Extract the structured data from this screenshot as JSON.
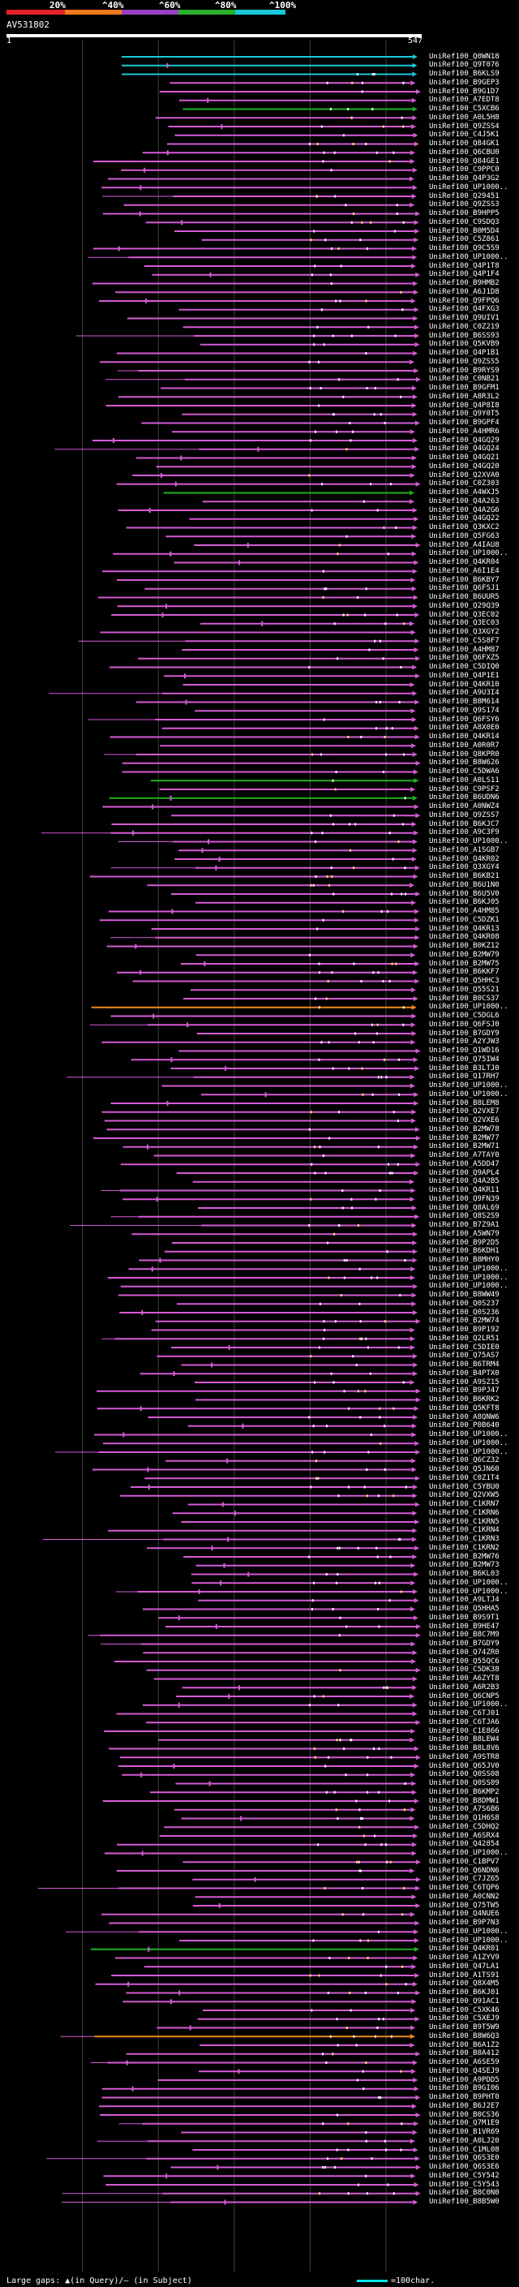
{
  "legend": {
    "labels": [
      "20%",
      "^40%",
      "^60%",
      "^80%",
      "^100%"
    ],
    "colors": [
      "#e8202a",
      "#ee7a1a",
      "#9b3fc0",
      "#2ab02a",
      "#19c9d9"
    ]
  },
  "query": {
    "id": "AV531802",
    "scale_start": "1",
    "scale_end": "547"
  },
  "colors": {
    "background": "#000000",
    "hit_magenta": "#d55bd5",
    "hit_cyan": "#19c9d9",
    "hit_green": "#22b022",
    "hit_orange": "#ee8a1a",
    "mismatch_white": "#ffffff",
    "mismatch_yellow": "#ffe066",
    "grid_line": "#404040"
  },
  "hit_labels": [
    "UniRef100_Q0WN18",
    "UniRef100_Q9T076",
    "UniRef100_B6KLS9",
    "UniRef100_B9GEP3",
    "UniRef100_B9G1D7",
    "UniRef100_A7EDT8",
    "UniRef100_C5XCB6",
    "UniRef100_A0L5H8",
    "UniRef100_Q9ZSS4",
    "UniRef100_C4J5K1",
    "UniRef100_Q84GK1",
    "UniRef100_Q6CBU0",
    "UniRef100_Q84GE1",
    "UniRef100_C9PPC0",
    "UniRef100_Q4P3G2",
    "UniRef100_UP1000..",
    "UniRef100_Q29451",
    "UniRef100_Q9ZSS3",
    "UniRef100_B9HPP5",
    "UniRef100_C9SDQ3",
    "UniRef100_B0M5D4",
    "UniRef100_C5Z861",
    "UniRef100_Q9C5S9",
    "UniRef100_UP1000..",
    "UniRef100_Q4P1T8",
    "UniRef100_Q4P1F4",
    "UniRef100_B9HMB2",
    "UniRef100_A6J1D8",
    "UniRef100_Q9FPQ6",
    "UniRef100_Q4FXG3",
    "UniRef100_Q9UIV1",
    "UniRef100_C0Z219",
    "UniRef100_B6SS93",
    "UniRef100_Q5KVB9",
    "UniRef100_Q4P1B1",
    "UniRef100_Q9ZSS5",
    "UniRef100_B9RYS9",
    "UniRef100_C0NB21",
    "UniRef100_B9GFM1",
    "UniRef100_A8R3L2",
    "UniRef100_Q4P8I8",
    "UniRef100_Q9Y0T5",
    "UniRef100_B9GPF4",
    "UniRef100_A4HMR6",
    "UniRef100_Q4GQ29",
    "UniRef100_Q4GQ24",
    "UniRef100_Q4GQ21",
    "UniRef100_Q4GQ20",
    "UniRef100_Q2XVA0",
    "UniRef100_C0Z303",
    "UniRef100_A4WXJ5",
    "UniRef100_Q4A263",
    "UniRef100_Q4A2G6",
    "UniRef100_Q4GQ22",
    "UniRef100_Q3KXC2",
    "UniRef100_Q5FG63",
    "UniRef100_A4IAU8",
    "UniRef100_UP1000..",
    "UniRef100_Q4KR04",
    "UniRef100_A6I1E4",
    "UniRef100_B6KBY7",
    "UniRef100_Q6FSJ1",
    "UniRef100_B6UUR5",
    "UniRef100_Q29Q39",
    "UniRef100_Q3EC02",
    "UniRef100_Q3EC03",
    "UniRef100_Q3XGY2",
    "UniRef100_C5S8F7",
    "UniRef100_A4HM87",
    "UniRef100_Q6FXZ5",
    "UniRef100_C5DIQ0",
    "UniRef100_Q4P1E1",
    "UniRef100_Q4KR10",
    "UniRef100_A9U3I4",
    "UniRef100_B8M614",
    "UniRef100_Q9S174",
    "UniRef100_Q6FSY6",
    "UniRef100_A8X0E0",
    "UniRef100_Q4KR14",
    "UniRef100_A0R0R7",
    "UniRef100_Q8KPR0",
    "UniRef100_B8W626",
    "UniRef100_C5DWA6",
    "UniRef100_A0LS11",
    "UniRef100_C9PSF2",
    "UniRef100_B6UDN6",
    "UniRef100_A0NWZ4",
    "UniRef100_Q9ZSS7",
    "UniRef100_B6KJC7",
    "UniRef100_A9C3F9",
    "UniRef100_UP1000..",
    "UniRef100_A1SGB7",
    "UniRef100_Q4KR02",
    "UniRef100_Q3XGY4",
    "UniRef100_B6KB21",
    "UniRef100_B6U1N0",
    "UniRef100_B6U5V0",
    "UniRef100_B6KJ05",
    "UniRef100_A4HM85",
    "UniRef100_C5DZK1",
    "UniRef100_Q4KR13",
    "UniRef100_Q4KR08",
    "UniRef100_B0KZ12",
    "UniRef100_B2MW79",
    "UniRef100_B2MW75",
    "UniRef100_B6KKF7",
    "UniRef100_Q5HHC3",
    "UniRef100_Q55S21",
    "UniRef100_B0CS37",
    "UniRef100_UP1000..",
    "UniRef100_C5DGL6",
    "UniRef100_Q6FSJ0",
    "UniRef100_B7GDY9",
    "UniRef100_A2YJW3",
    "UniRef100_Q1WD16",
    "UniRef100_Q75IW4",
    "UniRef100_B3LTJ0",
    "UniRef100_Q17RH7",
    "UniRef100_UP1000..",
    "UniRef100_UP1000..",
    "UniRef100_B8LEM8",
    "UniRef100_Q2VXE7",
    "UniRef100_Q2VXE6",
    "UniRef100_B2MW78",
    "UniRef100_B2MW77",
    "UniRef100_B2MW71",
    "UniRef100_A7TAY0",
    "UniRef100_A5DD47",
    "UniRef100_Q9APL4",
    "UniRef100_Q4A2B5",
    "UniRef100_Q4KR11",
    "UniRef100_Q9FN39",
    "UniRef100_Q8AL69",
    "UniRef100_Q8S2S9",
    "UniRef100_B7Z9A1",
    "UniRef100_A5WN79",
    "UniRef100_B9P2D5",
    "UniRef100_B6KDH1",
    "UniRef100_B8MHY0",
    "UniRef100_UP1000..",
    "UniRef100_UP1000..",
    "UniRef100_UP1000..",
    "UniRef100_B8WW49",
    "UniRef100_Q0S237",
    "UniRef100_Q0S236",
    "UniRef100_B2MW74",
    "UniRef100_B9P192",
    "UniRef100_Q2LR51",
    "UniRef100_C5DIE0",
    "UniRef100_Q75AS7",
    "UniRef100_B6TRM4",
    "UniRef100_B4PTX0",
    "UniRef100_A9SZ15",
    "UniRef100_B9PJ47",
    "UniRef100_B6KRK2",
    "UniRef100_Q5KFT8",
    "UniRef100_A8QNW6",
    "UniRef100_P0B640",
    "UniRef100_UP1000..",
    "UniRef100_UP1000..",
    "UniRef100_UP1000..",
    "UniRef100_Q6CZ32",
    "UniRef100_Q5JN60",
    "UniRef100_C0Z1T4",
    "UniRef100_C5YBU0",
    "UniRef100_Q2VXW5",
    "UniRef100_C1KRN7",
    "UniRef100_C1KRN6",
    "UniRef100_C1KRN5",
    "UniRef100_C1KRN4",
    "UniRef100_C1KRN3",
    "UniRef100_C1KRN2",
    "UniRef100_B2MW76",
    "UniRef100_B2MW73",
    "UniRef100_B6KL03",
    "UniRef100_UP1000..",
    "UniRef100_UP1000..",
    "UniRef100_A9LTJ4",
    "UniRef100_Q5HHA5",
    "UniRef100_B9S9T1",
    "UniRef100_B9HE47",
    "UniRef100_B8C7M9",
    "UniRef100_B7GDY9",
    "UniRef100_Q74ZR0",
    "UniRef100_Q55QC6",
    "UniRef100_C5DK38",
    "UniRef100_A6ZYT8",
    "UniRef100_A6R2B3",
    "UniRef100_Q6CNP5",
    "UniRef100_UP1000..",
    "UniRef100_C6TJ01",
    "UniRef100_C6TJA6",
    "UniRef100_C1E866",
    "UniRef100_B8LEW4",
    "UniRef100_B8L8V6",
    "UniRef100_A9STR8",
    "UniRef100_Q65JV0",
    "UniRef100_Q0SS08",
    "UniRef100_Q0SS09",
    "UniRef100_B6KMP2",
    "UniRef100_B8DMW1",
    "UniRef100_A7S6B6",
    "UniRef100_Q1H6S8",
    "UniRef100_C5DHQ2",
    "UniRef100_A6SRX4",
    "UniRef100_Q42854",
    "UniRef100_UP1000..",
    "UniRef100_C1BPV7",
    "UniRef100_Q6NDN6",
    "UniRef100_C7JZ65",
    "UniRef100_C6TQP6",
    "UniRef100_A0CNN2",
    "UniRef100_Q75TW5",
    "UniRef100_Q4NUE6",
    "UniRef100_B9P7N3",
    "UniRef100_UP1000..",
    "UniRef100_UP1000..",
    "UniRef100_Q4KR01",
    "UniRef100_A1ZYV9",
    "UniRef100_Q47LA1",
    "UniRef100_A1TS91",
    "UniRef100_Q8X4M5",
    "UniRef100_B6KJ01",
    "UniRef100_Q91AC1",
    "UniRef100_C5XK46",
    "UniRef100_C5XEJ9",
    "UniRef100_B9T5W9",
    "UniRef100_B8W6Q3",
    "UniRef100_B6A1Z2",
    "UniRef100_B8A412",
    "UniRef100_A6SE59",
    "UniRef100_Q4SEJ9",
    "UniRef100_A9PDD5",
    "UniRef100_B9GI06",
    "UniRef100_B9PHT0",
    "UniRef100_B6J2E7",
    "UniRef100_B0CS36",
    "UniRef100_Q7M1E9",
    "UniRef100_B1VR69",
    "UniRef100_A0LJ20",
    "UniRef100_C1ML08",
    "UniRef100_Q6S3E0",
    "UniRef100_Q6S3E6",
    "UniRef100_C5Y542",
    "UniRef100_C5Y543",
    "UniRef100_B8C0N0",
    "UniRef100_B8B5W0"
  ],
  "footer": {
    "large_gaps_text": "Large gaps: ▲(in Query)/– (in Subject)",
    "scale_text": "=100char."
  }
}
